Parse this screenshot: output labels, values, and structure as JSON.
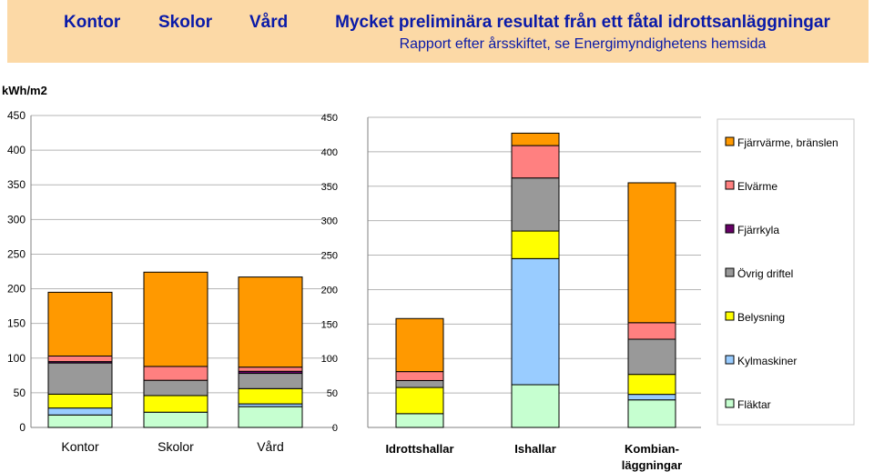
{
  "header": {
    "nav": [
      "Kontor",
      "Skolor",
      "Vård"
    ],
    "title": "Mycket preliminära resultat från ett fåtal idrottsanläggningar",
    "subtitle": "Rapport efter årsskiftet, se Energimyndighetens hemsida"
  },
  "colors": {
    "banner": "#fcd9a6",
    "header_text": "#0a1aa8",
    "grid": "#b5b5b5",
    "axis": "#808080"
  },
  "chart_data": [
    {
      "type": "bar",
      "stacked": true,
      "ylabel": "kWh/m2",
      "ylim": [
        0,
        450
      ],
      "yticks": [
        "0",
        "50",
        "100",
        "150",
        "200",
        "250",
        "300",
        "350",
        "400",
        "450"
      ],
      "grid": true,
      "categories": [
        "Kontor",
        "Skolor",
        "Vård"
      ],
      "series": [
        {
          "name": "Fläktar",
          "color": "#c6ffd0",
          "values": [
            18,
            22,
            30
          ]
        },
        {
          "name": "Kylmaskiner",
          "color": "#99ccff",
          "values": [
            10,
            0,
            4
          ]
        },
        {
          "name": "Belysning",
          "color": "#ffff00",
          "values": [
            20,
            24,
            22
          ]
        },
        {
          "name": "Övrig driftel",
          "color": "#999999",
          "values": [
            45,
            22,
            22
          ]
        },
        {
          "name": "Fjärrkyla",
          "color": "#660066",
          "values": [
            2,
            0,
            3
          ]
        },
        {
          "name": "Elvärme",
          "color": "#ff8080",
          "values": [
            8,
            20,
            6
          ]
        },
        {
          "name": "Fjärrvärme, bränslen",
          "color": "#ff9900",
          "values": [
            92,
            136,
            130
          ]
        }
      ]
    },
    {
      "type": "bar",
      "stacked": true,
      "ylim": [
        0,
        450
      ],
      "yticks": [
        "0",
        "50",
        "100",
        "150",
        "200",
        "250",
        "300",
        "350",
        "400",
        "450"
      ],
      "grid": true,
      "categories": [
        "Idrottshallar",
        "Ishallar",
        "Kombian-|läggningar"
      ],
      "series": [
        {
          "name": "Fläktar",
          "color": "#c6ffd0",
          "values": [
            20,
            62,
            40
          ]
        },
        {
          "name": "Kylmaskiner",
          "color": "#99ccff",
          "values": [
            0,
            183,
            8
          ]
        },
        {
          "name": "Belysning",
          "color": "#ffff00",
          "values": [
            38,
            40,
            29
          ]
        },
        {
          "name": "Övrig driftel",
          "color": "#999999",
          "values": [
            10,
            77,
            51
          ]
        },
        {
          "name": "Fjärrkyla",
          "color": "#660066",
          "values": [
            0,
            0,
            0
          ]
        },
        {
          "name": "Elvärme",
          "color": "#ff8080",
          "values": [
            13,
            47,
            24
          ]
        },
        {
          "name": "Fjärrvärme, bränslen",
          "color": "#ff9900",
          "values": [
            77,
            18,
            203
          ]
        }
      ]
    }
  ],
  "legend": {
    "placement": "right",
    "items": [
      {
        "label": "Fjärrvärme, bränslen",
        "color": "#ff9900"
      },
      {
        "label": "Elvärme",
        "color": "#ff8080"
      },
      {
        "label": "Fjärrkyla",
        "color": "#660066"
      },
      {
        "label": "Övrig driftel",
        "color": "#999999"
      },
      {
        "label": "Belysning",
        "color": "#ffff00"
      },
      {
        "label": "Kylmaskiner",
        "color": "#99ccff"
      },
      {
        "label": "Fläktar",
        "color": "#c6ffd0"
      }
    ]
  }
}
